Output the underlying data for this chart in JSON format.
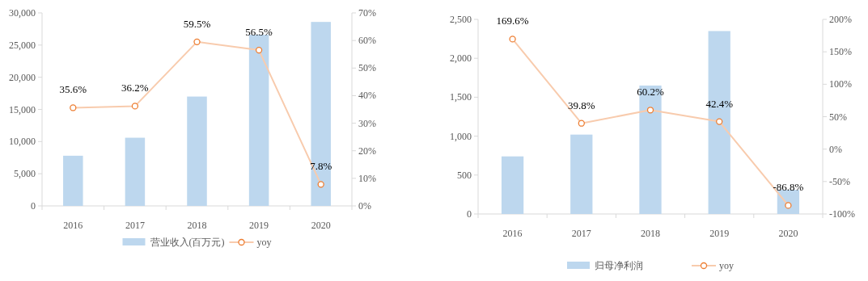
{
  "chart_data": [
    {
      "type": "bar",
      "categories": [
        "2016",
        "2017",
        "2018",
        "2019",
        "2020"
      ],
      "series": [
        {
          "name": "营业收入(百万元)",
          "color": "#bdd7ee",
          "values": [
            7800,
            10600,
            17000,
            26600,
            28600
          ]
        },
        {
          "name": "yoy",
          "type": "line",
          "axis": "y2",
          "color": "#f8cbad",
          "values": [
            35.6,
            36.2,
            59.5,
            56.5,
            7.8
          ],
          "value_labels": [
            "35.6%",
            "36.2%",
            "59.5%",
            "56.5%",
            "7.8%"
          ]
        }
      ],
      "ylim": [
        0,
        30000
      ],
      "yticks": [
        {
          "value": 0,
          "label": "0"
        },
        {
          "value": 5000,
          "label": "5,000"
        },
        {
          "value": 10000,
          "label": "10,000"
        },
        {
          "value": 15000,
          "label": "15,000"
        },
        {
          "value": 20000,
          "label": "20,000"
        },
        {
          "value": 25000,
          "label": "25,000"
        },
        {
          "value": 30000,
          "label": "30,000"
        }
      ],
      "y2lim": [
        0,
        70
      ],
      "y2ticks": [
        {
          "value": 0,
          "label": "0%"
        },
        {
          "value": 10,
          "label": "10%"
        },
        {
          "value": 20,
          "label": "20%"
        },
        {
          "value": 30,
          "label": "30%"
        },
        {
          "value": 40,
          "label": "40%"
        },
        {
          "value": 50,
          "label": "50%"
        },
        {
          "value": 60,
          "label": "60%"
        },
        {
          "value": 70,
          "label": "70%"
        }
      ],
      "marker": "circle",
      "legend": "bottom",
      "grid": false
    },
    {
      "type": "bar",
      "categories": [
        "2016",
        "2017",
        "2018",
        "2019",
        "2020"
      ],
      "series": [
        {
          "name": "归母净利润",
          "color": "#bdd7ee",
          "values": [
            740,
            1020,
            1650,
            2350,
            310
          ]
        },
        {
          "name": "yoy",
          "type": "line",
          "axis": "y2",
          "color": "#f8cbad",
          "values": [
            169.6,
            39.8,
            60.2,
            42.4,
            -86.8
          ],
          "value_labels": [
            "169.6%",
            "39.8%",
            "60.2%",
            "42.4%",
            "-86.8%"
          ]
        }
      ],
      "ylim": [
        0,
        2500
      ],
      "yticks": [
        {
          "value": 0,
          "label": "0"
        },
        {
          "value": 500,
          "label": "500"
        },
        {
          "value": 1000,
          "label": "1,000"
        },
        {
          "value": 1500,
          "label": "1,500"
        },
        {
          "value": 2000,
          "label": "2,000"
        },
        {
          "value": 2500,
          "label": "2,500"
        }
      ],
      "y2lim": [
        -100,
        200
      ],
      "y2ticks": [
        {
          "value": -100,
          "label": "-100%"
        },
        {
          "value": -50,
          "label": "-50%"
        },
        {
          "value": 0,
          "label": "0%"
        },
        {
          "value": 50,
          "label": "50%"
        },
        {
          "value": 100,
          "label": "100%"
        },
        {
          "value": 150,
          "label": "150%"
        },
        {
          "value": 200,
          "label": "200%"
        }
      ],
      "marker": "circle",
      "legend": "bottom",
      "grid": false
    }
  ]
}
